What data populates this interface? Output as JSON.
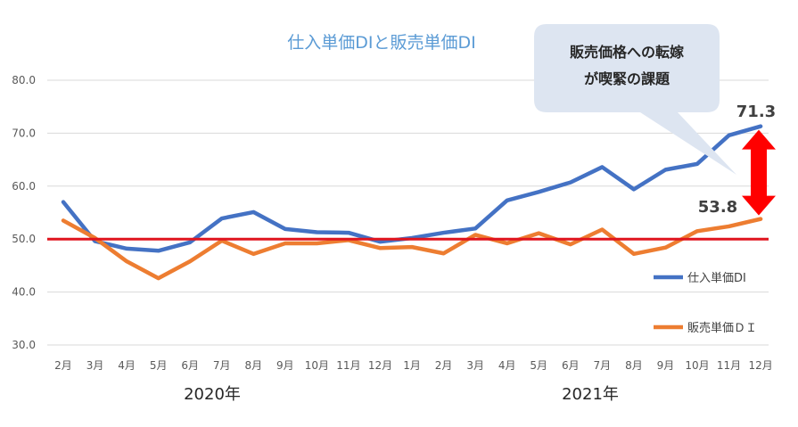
{
  "chart_data": {
    "type": "line",
    "title": "仕入単価DIと販売単価DI",
    "categories": [
      "2月",
      "3月",
      "4月",
      "5月",
      "6月",
      "7月",
      "8月",
      "9月",
      "10月",
      "11月",
      "12月",
      "1月",
      "2月",
      "3月",
      "4月",
      "5月",
      "6月",
      "7月",
      "8月",
      "9月",
      "10月",
      "11月",
      "12月"
    ],
    "year_labels": [
      "2020年",
      "2021年"
    ],
    "ylim": [
      30,
      80
    ],
    "yticks": [
      "30.0",
      "40.0",
      "50.0",
      "60.0",
      "70.0",
      "80.0"
    ],
    "grid": true,
    "series": [
      {
        "name": "仕入単価DI",
        "color": "#4472c4",
        "values": [
          57.0,
          49.6,
          48.2,
          47.8,
          49.4,
          53.9,
          55.1,
          51.9,
          51.3,
          51.2,
          49.5,
          50.2,
          51.2,
          52.0,
          57.3,
          58.9,
          60.7,
          63.6,
          59.4,
          63.1,
          64.2,
          69.6,
          71.3
        ]
      },
      {
        "name": "販売単価ＤＩ",
        "color": "#ed7d31",
        "values": [
          53.5,
          50.2,
          45.8,
          42.6,
          45.8,
          49.7,
          47.2,
          49.2,
          49.2,
          49.8,
          48.3,
          48.5,
          47.3,
          50.8,
          49.2,
          51.1,
          49.0,
          51.8,
          47.2,
          48.4,
          51.5,
          52.4,
          53.8
        ]
      }
    ],
    "reference_line": {
      "value": 50.0,
      "color": "#e0141e"
    },
    "data_labels": {
      "last_purchase": "71.3",
      "last_sales": "53.8"
    },
    "callout": {
      "lines": [
        "販売価格への転嫁",
        "が喫緊の課題"
      ],
      "fill": "#dde5f1"
    },
    "arrow_color": "#ff0000",
    "legend": "right"
  }
}
